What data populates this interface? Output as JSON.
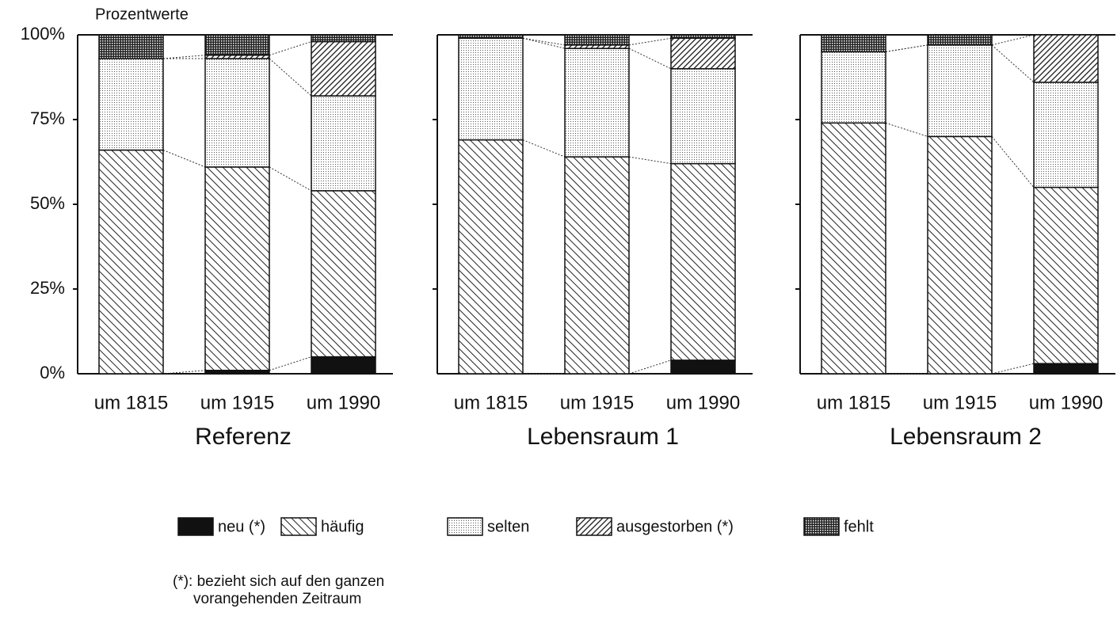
{
  "chart_data": {
    "type": "bar",
    "stacked": true,
    "ylabel": "Prozentwerte",
    "groups": [
      "Referenz",
      "Lebensraum 1",
      "Lebensraum 2"
    ],
    "categories": [
      "um 1815",
      "um 1915",
      "um 1990",
      "um 1815",
      "um 1915",
      "um 1990",
      "um 1815",
      "um 1915",
      "um 1990"
    ],
    "series": [
      {
        "name": "neu (*)",
        "values": [
          0,
          1,
          5,
          0,
          0,
          4,
          0,
          0,
          3
        ]
      },
      {
        "name": "häufig",
        "values": [
          66,
          60,
          49,
          69,
          64,
          58,
          74,
          70,
          52
        ]
      },
      {
        "name": "selten",
        "values": [
          27,
          32,
          28,
          30,
          32,
          28,
          21,
          27,
          31
        ]
      },
      {
        "name": "ausgestorben (*)",
        "values": [
          0,
          1,
          16,
          0,
          1,
          9,
          0,
          0,
          14
        ]
      },
      {
        "name": "fehlt",
        "values": [
          7,
          6,
          2,
          1,
          3,
          1,
          5,
          3,
          0
        ]
      }
    ],
    "ylim": [
      0,
      100
    ],
    "yticks": [
      {
        "value": 0,
        "label": "0%"
      },
      {
        "value": 25,
        "label": "25%"
      },
      {
        "value": 50,
        "label": "50%"
      },
      {
        "value": 75,
        "label": "75%"
      },
      {
        "value": 100,
        "label": "100%"
      }
    ],
    "note": [
      "(*): bezieht sich auf den ganzen",
      "vorangehenden Zeitraum"
    ]
  }
}
